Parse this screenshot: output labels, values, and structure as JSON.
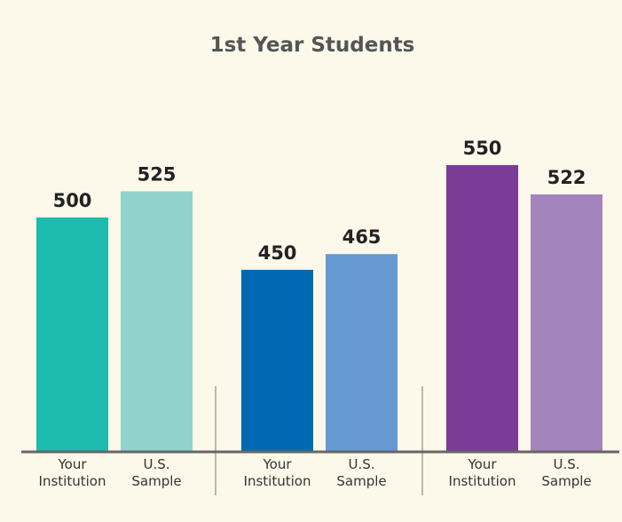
{
  "chart_data": {
    "type": "bar",
    "title": "1st Year Students",
    "categories": [
      "Your\nInstitution",
      "U.S.\nSample",
      "Your\nInstitution",
      "U.S.\nSample",
      "Your\nInstitution",
      "U.S.\nSample"
    ],
    "values": [
      500,
      525,
      450,
      465,
      550,
      522
    ],
    "colors": [
      "#1dbbad",
      "#8fd3cc",
      "#0069b4",
      "#6699d1",
      "#7b3b96",
      "#a484bd"
    ],
    "ylim": [
      277,
      600
    ]
  }
}
